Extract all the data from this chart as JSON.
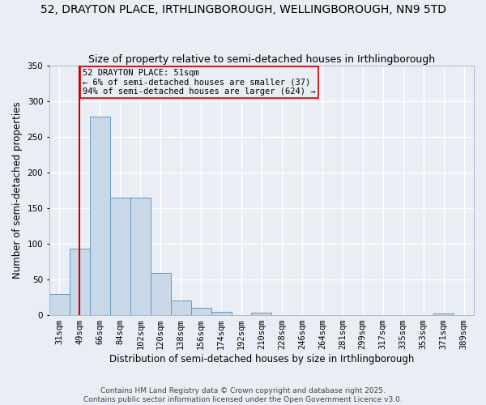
{
  "title": "52, DRAYTON PLACE, IRTHLINGBOROUGH, WELLINGBOROUGH, NN9 5TD",
  "subtitle": "Size of property relative to semi-detached houses in Irthlingborough",
  "xlabel": "Distribution of semi-detached houses by size in Irthlingborough",
  "ylabel": "Number of semi-detached properties",
  "categories": [
    "31sqm",
    "49sqm",
    "66sqm",
    "84sqm",
    "102sqm",
    "120sqm",
    "138sqm",
    "156sqm",
    "174sqm",
    "192sqm",
    "210sqm",
    "228sqm",
    "246sqm",
    "264sqm",
    "281sqm",
    "299sqm",
    "317sqm",
    "335sqm",
    "353sqm",
    "371sqm",
    "389sqm"
  ],
  "values": [
    30,
    93,
    278,
    165,
    165,
    59,
    21,
    10,
    5,
    0,
    4,
    0,
    0,
    0,
    0,
    0,
    0,
    0,
    0,
    2,
    0
  ],
  "bar_color": "#c8d8e8",
  "bar_edge_color": "#6699bb",
  "background_color": "#e8eef4",
  "grid_color": "#ffffff",
  "vline_color": "#cc0000",
  "vline_index": 1,
  "annotation_title": "52 DRAYTON PLACE: 51sqm",
  "annotation_line1": "← 6% of semi-detached houses are smaller (37)",
  "annotation_line2": "94% of semi-detached houses are larger (624) →",
  "annotation_box_color": "#cc0000",
  "ylim": [
    0,
    350
  ],
  "yticks": [
    0,
    50,
    100,
    150,
    200,
    250,
    300,
    350
  ],
  "footer1": "Contains HM Land Registry data © Crown copyright and database right 2025.",
  "footer2": "Contains public sector information licensed under the Open Government Licence v3.0.",
  "title_fontsize": 10,
  "subtitle_fontsize": 9,
  "axis_label_fontsize": 8.5,
  "tick_fontsize": 7.5,
  "annotation_fontsize": 7.5,
  "footer_fontsize": 6.5
}
